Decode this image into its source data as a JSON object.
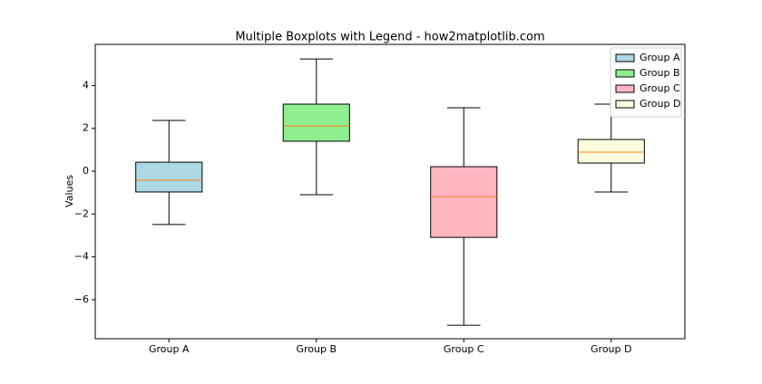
{
  "chart_data": {
    "type": "box",
    "title": "Multiple Boxplots with Legend - how2matplotlib.com",
    "ylabel": "Values",
    "categories": [
      "Group A",
      "Group B",
      "Group C",
      "Group D"
    ],
    "series": [
      {
        "name": "Group A",
        "color": "lightblue",
        "whislo": -2.49,
        "q1": -0.97,
        "med": -0.42,
        "q3": 0.42,
        "whishi": 2.37
      },
      {
        "name": "Group B",
        "color": "lightgreen",
        "whislo": -1.1,
        "q1": 1.4,
        "med": 2.11,
        "q3": 3.13,
        "whishi": 5.24
      },
      {
        "name": "Group C",
        "color": "lightpink",
        "whislo": -7.19,
        "q1": -3.09,
        "med": -1.18,
        "q3": 0.21,
        "whishi": 2.96
      },
      {
        "name": "Group D",
        "color": "lightyellow",
        "whislo": -0.97,
        "q1": 0.38,
        "med": 0.89,
        "q3": 1.48,
        "whishi": 3.13
      }
    ],
    "median_color": "#ff7f0e",
    "ylim": [
      -7.82,
      5.92
    ],
    "yticks": [
      {
        "value": -6,
        "label": "−6"
      },
      {
        "value": -4,
        "label": "−4"
      },
      {
        "value": -2,
        "label": "−2"
      },
      0,
      2,
      4
    ],
    "legend": "upper right"
  }
}
